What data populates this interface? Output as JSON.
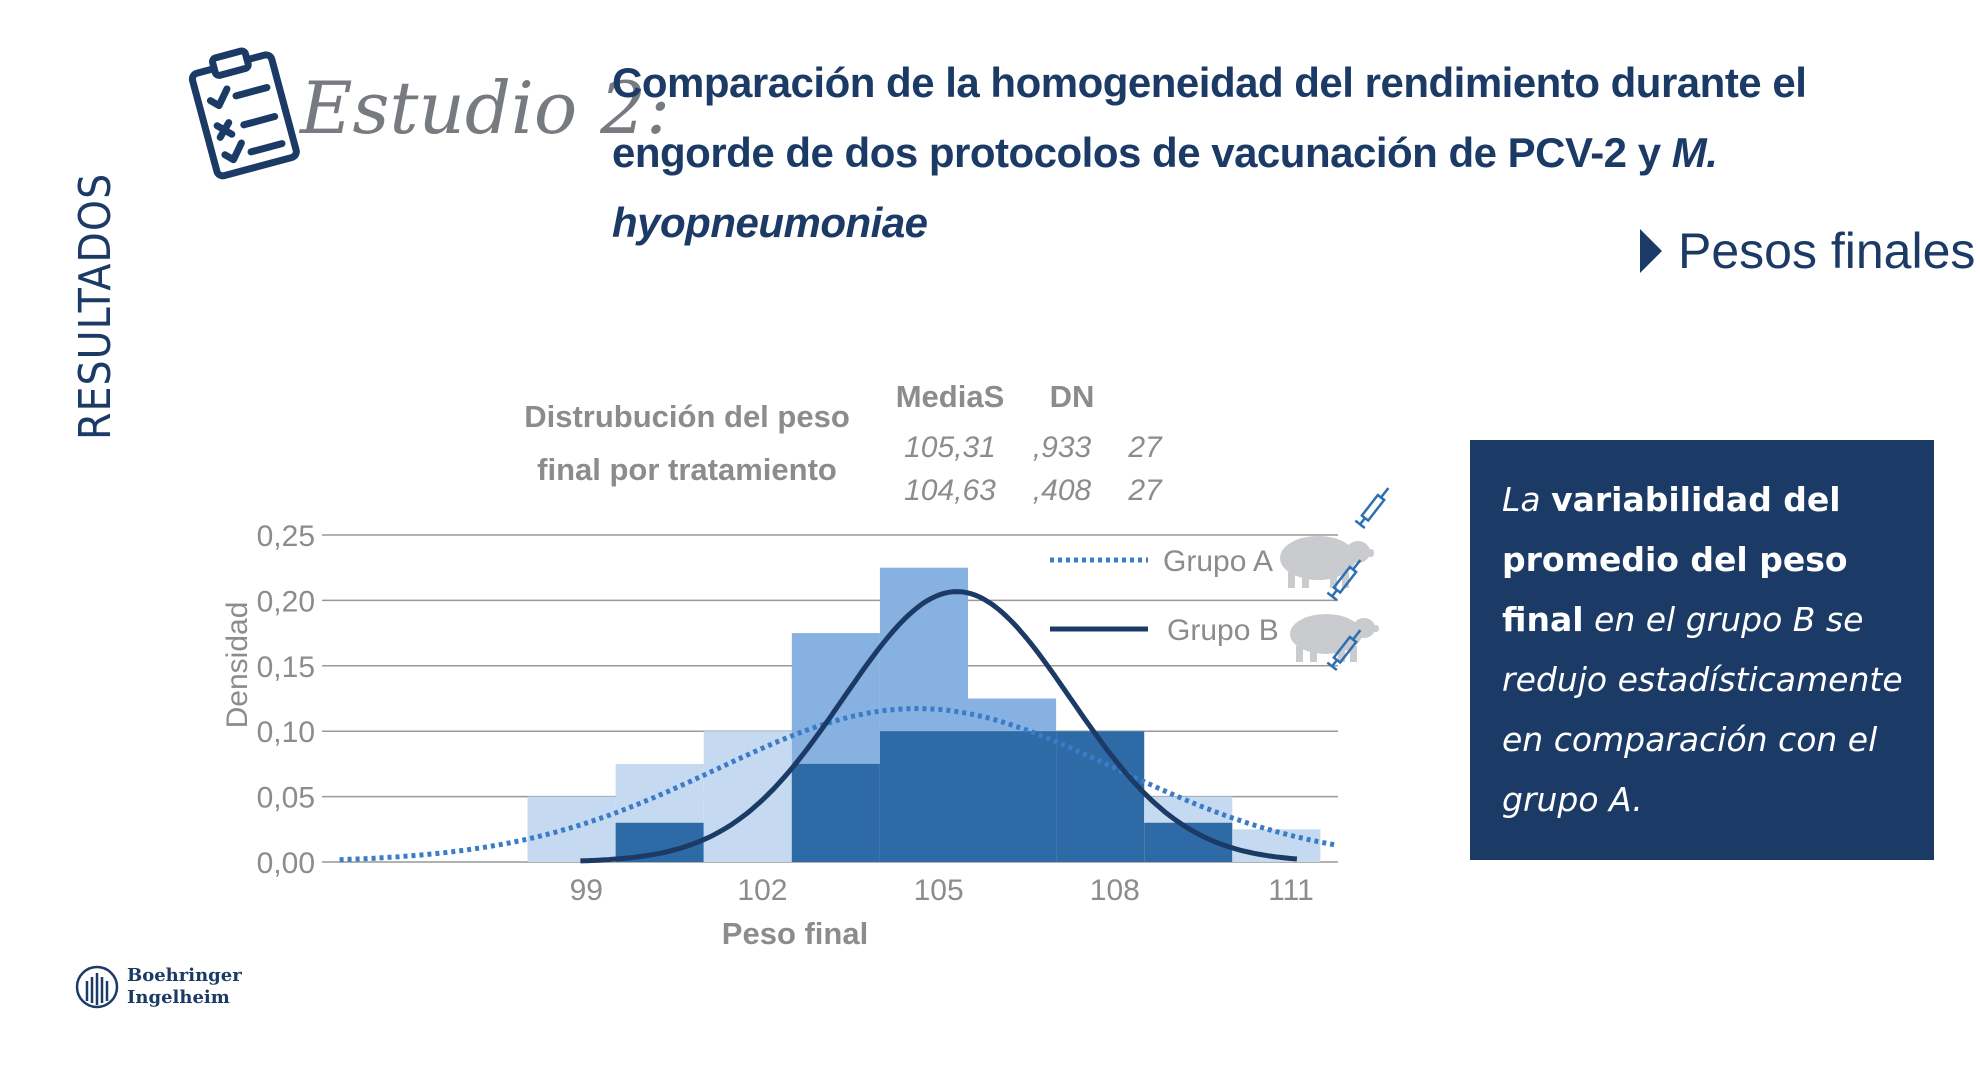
{
  "sidebar": {
    "label": "RESULTADOS"
  },
  "header": {
    "study": "Estudio 2:",
    "title_main": "Comparación de la homogeneidad del rendimiento durante el engorde de dos protocolos de vacunación de PCV-2 y ",
    "title_italic": "M. hyopneumoniae"
  },
  "section": {
    "label": "Pesos finales"
  },
  "callout": {
    "part1": "La ",
    "part2": "variabilidad del promedio del peso final",
    "part3": " en el grupo B se redujo estadísticamente en comparación con el grupo A."
  },
  "logo": {
    "line1": "Boehringer",
    "line2": "Ingelheim"
  },
  "colors": {
    "navy": "#1b3a66",
    "accent_blue": "#2f6fb0",
    "dotted_blue": "#3a7cc8",
    "hist_light": "#c5d9f0",
    "hist_mid": "#87b1e0",
    "hist_dark": "#2e6aa6",
    "grid": "#999999",
    "text_gray": "#8c8c8c",
    "pig_gray": "#c9cbce"
  },
  "chart_data": {
    "type": "histogram",
    "subtitle": [
      "Distrubución del peso",
      "final por tratamiento"
    ],
    "stats_table": {
      "headers": [
        "MediaS",
        "DN",
        ""
      ],
      "rows": [
        [
          "105,31",
          ",933",
          "27"
        ],
        [
          "104,63",
          ",408",
          "27"
        ]
      ]
    },
    "xlabel": "Peso final",
    "ylabel": "Densidad",
    "xlim": [
      94.5,
      111.8
    ],
    "ylim": [
      0,
      0.25
    ],
    "x_ticks": [
      99,
      102,
      105,
      108,
      111
    ],
    "x_tick_labels": [
      "99",
      "102",
      "105",
      "108",
      "111"
    ],
    "y_ticks": [
      0,
      0.05,
      0.1,
      0.15,
      0.2,
      0.25
    ],
    "y_tick_labels": [
      "0,00",
      "0,05",
      "0,10",
      "0,15",
      "0,20",
      "0,25"
    ],
    "grid": true,
    "legend_position": "top-right",
    "series": [
      {
        "name": "Grupo A",
        "line_style": "dotted",
        "bin_edges": [
          96.5,
          98.0,
          99.5,
          101.0,
          102.5,
          104.0,
          105.5,
          107.0,
          108.5,
          110.0,
          111.5
        ],
        "densities": [
          0.0,
          0.05,
          0.075,
          0.1,
          0.175,
          0.225,
          0.125,
          0.1,
          0.05,
          0.025
        ],
        "curve": {
          "mean": 104.63,
          "sd": 3.4
        }
      },
      {
        "name": "Grupo B",
        "line_style": "solid",
        "bin_edges": [
          96.5,
          98.0,
          99.5,
          101.0,
          102.5,
          104.0,
          105.5,
          107.0,
          108.5,
          110.0,
          111.5
        ],
        "densities": [
          0.0,
          0.0,
          0.03,
          0.0,
          0.075,
          0.1,
          0.1,
          0.1,
          0.03,
          0.0
        ],
        "curve": {
          "mean": 105.31,
          "sd": 1.93
        }
      }
    ]
  }
}
